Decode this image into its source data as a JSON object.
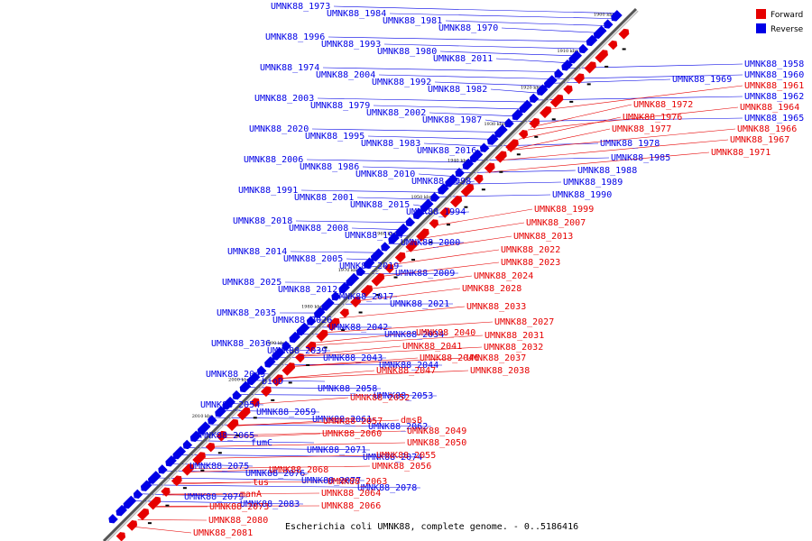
{
  "colors": {
    "forward": "#e60000",
    "reverse": "#0000e6",
    "backbone": "#777777"
  },
  "legend": {
    "forward": "Forward",
    "reverse": "Reverse"
  },
  "caption": "Escherichia coli UMNK88, complete genome. - 0..5186416",
  "ticks": [
    "1900 kbp",
    "1910 kbp",
    "1920 kbp",
    "1930 kbp",
    "1940 kbp",
    "1950 kbp",
    "1960 kbp",
    "1970 kbp",
    "1980 kbp",
    "1990 kbp",
    "2000 kbp",
    "2010 kbp"
  ],
  "reverse_labels": [
    "UMNK88_1973",
    "UMNK88_1984",
    "UMNK88_1981",
    "UMNK88_1970",
    "UMNK88_1996",
    "UMNK88_1993",
    "UMNK88_1980",
    "UMNK88_2011",
    "UMNK88_1974",
    "UMNK88_2004",
    "UMNK88_1992",
    "UMNK88_1982",
    "UMNK88_2003",
    "UMNK88_1979",
    "UMNK88_2002",
    "UMNK88_1987",
    "UMNK88_2020",
    "UMNK88_1995",
    "UMNK88_1983",
    "UMNK88_2016",
    "UMNK88_2006",
    "UMNK88_1986",
    "UMNK88_2010",
    "UMNK88_1998",
    "UMNK88_1991",
    "UMNK88_2001",
    "UMNK88_2015",
    "UMNK88_1994",
    "UMNK88_2018",
    "UMNK88_2008",
    "UMNK88_1997",
    "UMNK88_2000",
    "UMNK88_2014",
    "UMNK88_2005",
    "UMNK88_2019",
    "UMNK88_2009",
    "UMNK88_2025",
    "UMNK88_2012",
    "UMNK88_2017",
    "UMNK88_2021",
    "UMNK88_2035",
    "UMNK88_2026",
    "UMNK88_2042",
    "UMNK88_2034",
    "UMNK88_2036",
    "UMNK88_2039",
    "UMNK88_2043",
    "UMNK88_2044",
    "UMNK88_2045",
    "bioD",
    "UMNK88_2058",
    "UMNK88_2053",
    "UMNK88_2054",
    "UMNK88_2059",
    "UMNK88_2061",
    "UMNK88_2062",
    "UMNK88_2065",
    "fumC",
    "UMNK88_2071",
    "UMNK88_2074",
    "UMNK88_2075",
    "UMNK88_2076",
    "UMNK88_2077",
    "UMNK88_2078",
    "UMNK88_2079",
    "UMNK88_2083",
    "UMNK88_1958",
    "UMNK88_1960",
    "UMNK88_1962",
    "UMNK88_1969",
    "UMNK88_1965",
    "UMNK88_1985",
    "UMNK88_1978",
    "UMNK88_1988",
    "UMNK88_1989",
    "UMNK88_1990"
  ],
  "forward_labels": [
    "UMNK88_1961",
    "UMNK88_1964",
    "UMNK88_1966",
    "UMNK88_1967",
    "UMNK88_1971",
    "UMNK88_1972",
    "UMNK88_1976",
    "UMNK88_1977",
    "UMNK88_1999",
    "UMNK88_2007",
    "UMNK88_2013",
    "UMNK88_2022",
    "UMNK88_2023",
    "UMNK88_2024",
    "UMNK88_2028",
    "UMNK88_2033",
    "UMNK88_2027",
    "UMNK88_2040",
    "UMNK88_2031",
    "UMNK88_2041",
    "UMNK88_2032",
    "UMNK88_2046",
    "UMNK88_2037",
    "UMNK88_2047",
    "UMNK88_2038",
    "UMNK88_2052",
    "UMNK88_2057",
    "dmsB",
    "UMNK88_2060",
    "UMNK88_2049",
    "UMNK88_2050",
    "UMNK88_2055",
    "UMNK88_2056",
    "UMNK88_2068",
    "tus",
    "UMNK88_2063",
    "manA",
    "UMNK88_2064",
    "UMNK88_2073",
    "UMNK88_2066",
    "UMNK88_2080",
    "UMNK88_2081"
  ]
}
